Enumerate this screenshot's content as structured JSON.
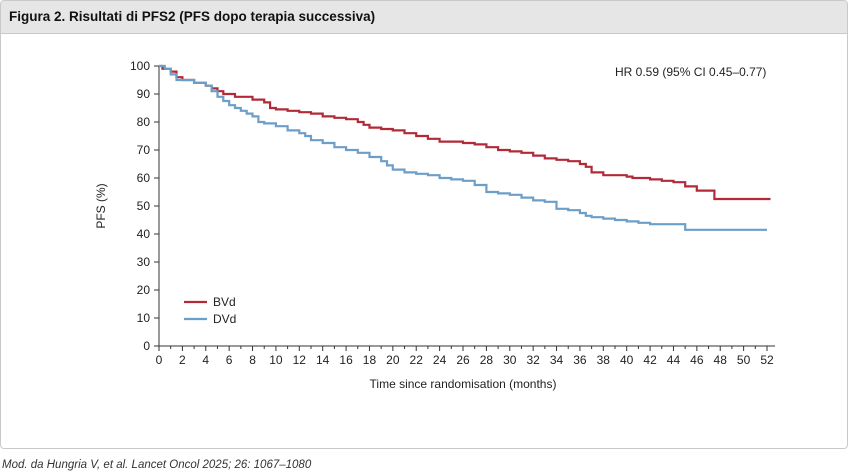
{
  "header": {
    "title": "Figura 2. Risultati di PFS2 (PFS dopo terapia successiva)"
  },
  "caption": "Mod. da Hungria V, et al. Lancet Oncol 2025; 26: 1067–1080",
  "chart_data": {
    "type": "line",
    "title": "",
    "xlabel": "Time since randomisation (months)",
    "ylabel": "PFS (%)",
    "xlim": [
      0,
      52
    ],
    "ylim": [
      0,
      100
    ],
    "xticks": [
      "0",
      "2",
      "4",
      "6",
      "8",
      "10",
      "12",
      "14",
      "16",
      "18",
      "20",
      "22",
      "24",
      "26",
      "28",
      "30",
      "32",
      "34",
      "36",
      "38",
      "40",
      "42",
      "44",
      "46",
      "48",
      "50",
      "52"
    ],
    "yticks": [
      "0",
      "10",
      "20",
      "30",
      "40",
      "50",
      "60",
      "70",
      "80",
      "90",
      "100"
    ],
    "annotation": "HR 0.59 (95% CI 0.45–0.77)",
    "legend_position": "bottom-left",
    "grid": false,
    "series": [
      {
        "name": "BVd",
        "color": "#b22a38",
        "points": [
          [
            0,
            100
          ],
          [
            0.3,
            99
          ],
          [
            1,
            98
          ],
          [
            1.5,
            96
          ],
          [
            2,
            95
          ],
          [
            3,
            94
          ],
          [
            4,
            93
          ],
          [
            4.5,
            92
          ],
          [
            5,
            91
          ],
          [
            5.5,
            90
          ],
          [
            6,
            90
          ],
          [
            6.5,
            89
          ],
          [
            8,
            88
          ],
          [
            9,
            87
          ],
          [
            9.5,
            85
          ],
          [
            10,
            84.5
          ],
          [
            11,
            84
          ],
          [
            12,
            83.5
          ],
          [
            13,
            83
          ],
          [
            14,
            82
          ],
          [
            15,
            81.5
          ],
          [
            16,
            81
          ],
          [
            17,
            80
          ],
          [
            17.5,
            79
          ],
          [
            18,
            78
          ],
          [
            19,
            77.5
          ],
          [
            20,
            77
          ],
          [
            21,
            76
          ],
          [
            22,
            75
          ],
          [
            23,
            74
          ],
          [
            24,
            73
          ],
          [
            26,
            72.5
          ],
          [
            27,
            72
          ],
          [
            28,
            71
          ],
          [
            29,
            70
          ],
          [
            30,
            69.5
          ],
          [
            31,
            69
          ],
          [
            32,
            68
          ],
          [
            33,
            67
          ],
          [
            34,
            66.5
          ],
          [
            35,
            66
          ],
          [
            36,
            65
          ],
          [
            36.5,
            64
          ],
          [
            37,
            62
          ],
          [
            38,
            61
          ],
          [
            40,
            60.5
          ],
          [
            40.5,
            60
          ],
          [
            42,
            59.5
          ],
          [
            43,
            59
          ],
          [
            44,
            58.5
          ],
          [
            45,
            57
          ],
          [
            46,
            55.5
          ],
          [
            47.5,
            52.5
          ],
          [
            53,
            52.5
          ]
        ]
      },
      {
        "name": "DVd",
        "color": "#6d9ec8",
        "points": [
          [
            0,
            100
          ],
          [
            0.5,
            99
          ],
          [
            1,
            97
          ],
          [
            1.5,
            95
          ],
          [
            3,
            94
          ],
          [
            4,
            93
          ],
          [
            4.5,
            91
          ],
          [
            5,
            89
          ],
          [
            5.5,
            87.5
          ],
          [
            6,
            86
          ],
          [
            6.5,
            85
          ],
          [
            7,
            84
          ],
          [
            7.5,
            83
          ],
          [
            8,
            82
          ],
          [
            8.5,
            80
          ],
          [
            9,
            79.5
          ],
          [
            10,
            78.5
          ],
          [
            11,
            77
          ],
          [
            12,
            76
          ],
          [
            12.5,
            75
          ],
          [
            13,
            73.5
          ],
          [
            14,
            72.5
          ],
          [
            15,
            71
          ],
          [
            16,
            70
          ],
          [
            17,
            69
          ],
          [
            18,
            67.5
          ],
          [
            19,
            66
          ],
          [
            19.5,
            64.5
          ],
          [
            20,
            63
          ],
          [
            21,
            62
          ],
          [
            22,
            61.5
          ],
          [
            23,
            61
          ],
          [
            24,
            60
          ],
          [
            25,
            59.5
          ],
          [
            26,
            59
          ],
          [
            27,
            57.5
          ],
          [
            28,
            55
          ],
          [
            29,
            54.5
          ],
          [
            30,
            54
          ],
          [
            31,
            53
          ],
          [
            32,
            52
          ],
          [
            33,
            51.5
          ],
          [
            34,
            49
          ],
          [
            35,
            48.5
          ],
          [
            36,
            47.5
          ],
          [
            36.5,
            46.5
          ],
          [
            37,
            46
          ],
          [
            38,
            45.5
          ],
          [
            39,
            45
          ],
          [
            40,
            44.5
          ],
          [
            41,
            44
          ],
          [
            42,
            43.5
          ],
          [
            44,
            43.5
          ],
          [
            45,
            41.5
          ],
          [
            52,
            41.5
          ]
        ]
      }
    ]
  }
}
